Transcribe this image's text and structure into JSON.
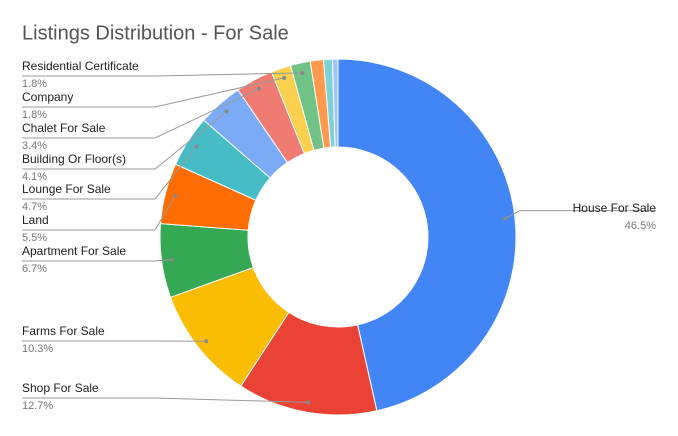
{
  "chart_data": {
    "type": "donut",
    "title": "Listings Distribution - For Sale",
    "categories": [
      "House For Sale",
      "Shop For Sale",
      "Farms For Sale",
      "Apartment For Sale",
      "Land",
      "Lounge For Sale",
      "Building Or Floor(s)",
      "Chalet For Sale",
      "Company",
      "Residential Certificate",
      null,
      null,
      null
    ],
    "values": [
      46.5,
      12.7,
      10.3,
      6.7,
      5.5,
      4.7,
      4.1,
      3.4,
      1.8,
      1.8,
      1.2,
      0.8,
      0.5
    ],
    "value_labels": [
      "46.5%",
      "12.7%",
      "10.3%",
      "6.7%",
      "5.5%",
      "4.7%",
      "4.1%",
      "3.4%",
      "1.8%",
      "1.8%",
      null,
      null,
      null
    ],
    "colors": [
      "#4285f4",
      "#ea4335",
      "#fbbc04",
      "#34a853",
      "#ff6d01",
      "#46bdc6",
      "#7baaf7",
      "#f07b72",
      "#fcd04f",
      "#71c287",
      "#ff994d",
      "#7ed1d7",
      "#a0c3ff"
    ]
  }
}
